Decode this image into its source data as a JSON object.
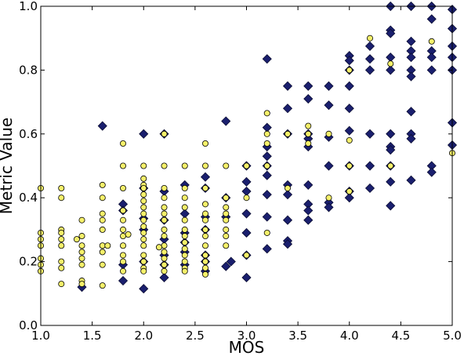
{
  "chart_data": {
    "type": "scatter",
    "title": "",
    "xlabel": "MOS",
    "ylabel": "Metric Value",
    "xlim": [
      1.0,
      5.0
    ],
    "ylim": [
      0.0,
      1.0
    ],
    "x_ticks": [
      "1.0",
      "1.5",
      "2.0",
      "2.5",
      "3.0",
      "3.5",
      "4.0",
      "4.5",
      "5.0"
    ],
    "y_ticks": [
      "0.0",
      "0.2",
      "0.4",
      "0.6",
      "0.8",
      "1.0"
    ],
    "grid": false,
    "legend": "none",
    "series": [
      {
        "marker": "diamond",
        "color": "#1a1f6e",
        "points": [
          [
            1.4,
            0.12
          ],
          [
            1.6,
            0.625
          ],
          [
            1.8,
            0.38
          ],
          [
            1.8,
            0.36
          ],
          [
            1.8,
            0.19
          ],
          [
            1.8,
            0.14
          ],
          [
            2.0,
            0.6
          ],
          [
            2.0,
            0.43
          ],
          [
            2.0,
            0.335
          ],
          [
            2.0,
            0.3
          ],
          [
            2.0,
            0.2
          ],
          [
            2.0,
            0.115
          ],
          [
            2.2,
            0.6
          ],
          [
            2.2,
            0.42
          ],
          [
            2.2,
            0.33
          ],
          [
            2.2,
            0.27
          ],
          [
            2.2,
            0.22
          ],
          [
            2.2,
            0.19
          ],
          [
            2.2,
            0.15
          ],
          [
            2.4,
            0.44
          ],
          [
            2.4,
            0.35
          ],
          [
            2.4,
            0.29
          ],
          [
            2.4,
            0.26
          ],
          [
            2.4,
            0.23
          ],
          [
            2.4,
            0.19
          ],
          [
            2.6,
            0.465
          ],
          [
            2.6,
            0.43
          ],
          [
            2.6,
            0.34
          ],
          [
            2.6,
            0.3
          ],
          [
            2.6,
            0.22
          ],
          [
            2.6,
            0.2
          ],
          [
            2.6,
            0.17
          ],
          [
            2.8,
            0.64
          ],
          [
            2.8,
            0.4
          ],
          [
            2.8,
            0.34
          ],
          [
            2.8,
            0.185
          ],
          [
            2.85,
            0.2
          ],
          [
            3.0,
            0.5
          ],
          [
            3.0,
            0.45
          ],
          [
            3.0,
            0.42
          ],
          [
            3.0,
            0.35
          ],
          [
            3.0,
            0.29
          ],
          [
            3.0,
            0.22
          ],
          [
            3.0,
            0.15
          ],
          [
            3.2,
            0.835
          ],
          [
            3.2,
            0.62
          ],
          [
            3.2,
            0.56
          ],
          [
            3.2,
            0.53
          ],
          [
            3.2,
            0.5
          ],
          [
            3.2,
            0.47
          ],
          [
            3.2,
            0.41
          ],
          [
            3.2,
            0.34
          ],
          [
            3.2,
            0.24
          ],
          [
            3.4,
            0.75
          ],
          [
            3.4,
            0.68
          ],
          [
            3.4,
            0.6
          ],
          [
            3.4,
            0.44
          ],
          [
            3.4,
            0.41
          ],
          [
            3.4,
            0.33
          ],
          [
            3.4,
            0.265
          ],
          [
            3.4,
            0.255
          ],
          [
            3.6,
            0.75
          ],
          [
            3.6,
            0.71
          ],
          [
            3.6,
            0.6
          ],
          [
            3.6,
            0.585
          ],
          [
            3.6,
            0.56
          ],
          [
            3.6,
            0.44
          ],
          [
            3.6,
            0.38
          ],
          [
            3.6,
            0.36
          ],
          [
            3.6,
            0.33
          ],
          [
            3.8,
            0.75
          ],
          [
            3.8,
            0.69
          ],
          [
            3.8,
            0.59
          ],
          [
            3.8,
            0.5
          ],
          [
            3.8,
            0.385
          ],
          [
            3.8,
            0.37
          ],
          [
            4.0,
            0.845
          ],
          [
            4.0,
            0.83
          ],
          [
            4.0,
            0.8
          ],
          [
            4.0,
            0.75
          ],
          [
            4.0,
            0.68
          ],
          [
            4.0,
            0.61
          ],
          [
            4.0,
            0.5
          ],
          [
            4.0,
            0.42
          ],
          [
            4.0,
            0.4
          ],
          [
            4.2,
            0.875
          ],
          [
            4.2,
            0.835
          ],
          [
            4.2,
            0.8
          ],
          [
            4.2,
            0.6
          ],
          [
            4.2,
            0.5
          ],
          [
            4.2,
            0.43
          ],
          [
            4.4,
            1.0
          ],
          [
            4.4,
            0.925
          ],
          [
            4.4,
            0.915
          ],
          [
            4.4,
            0.84
          ],
          [
            4.4,
            0.8
          ],
          [
            4.4,
            0.6
          ],
          [
            4.4,
            0.56
          ],
          [
            4.4,
            0.55
          ],
          [
            4.4,
            0.5
          ],
          [
            4.4,
            0.45
          ],
          [
            4.4,
            0.375
          ],
          [
            4.6,
            1.0
          ],
          [
            4.6,
            0.89
          ],
          [
            4.6,
            0.86
          ],
          [
            4.6,
            0.84
          ],
          [
            4.6,
            0.8
          ],
          [
            4.6,
            0.78
          ],
          [
            4.6,
            0.67
          ],
          [
            4.6,
            0.6
          ],
          [
            4.6,
            0.585
          ],
          [
            4.6,
            0.455
          ],
          [
            4.8,
            1.0
          ],
          [
            4.8,
            0.96
          ],
          [
            4.8,
            0.86
          ],
          [
            4.8,
            0.84
          ],
          [
            4.8,
            0.8
          ],
          [
            4.8,
            0.5
          ],
          [
            4.8,
            0.48
          ],
          [
            5.0,
            0.99
          ],
          [
            5.0,
            0.93
          ],
          [
            5.0,
            0.875
          ],
          [
            5.0,
            0.84
          ],
          [
            5.0,
            0.8
          ],
          [
            5.0,
            0.635
          ],
          [
            5.0,
            0.565
          ]
        ]
      },
      {
        "marker": "circle",
        "color": "#f5f06a",
        "points": [
          [
            1.0,
            0.43
          ],
          [
            1.0,
            0.29
          ],
          [
            1.0,
            0.27
          ],
          [
            1.0,
            0.25
          ],
          [
            1.0,
            0.21
          ],
          [
            1.0,
            0.19
          ],
          [
            1.0,
            0.17
          ],
          [
            1.2,
            0.43
          ],
          [
            1.2,
            0.4
          ],
          [
            1.2,
            0.3
          ],
          [
            1.2,
            0.29
          ],
          [
            1.2,
            0.27
          ],
          [
            1.2,
            0.25
          ],
          [
            1.2,
            0.2
          ],
          [
            1.2,
            0.18
          ],
          [
            1.2,
            0.13
          ],
          [
            1.35,
            0.27
          ],
          [
            1.4,
            0.33
          ],
          [
            1.4,
            0.28
          ],
          [
            1.4,
            0.25
          ],
          [
            1.4,
            0.23
          ],
          [
            1.4,
            0.21
          ],
          [
            1.4,
            0.19
          ],
          [
            1.4,
            0.14
          ],
          [
            1.4,
            0.13
          ],
          [
            1.6,
            0.44
          ],
          [
            1.6,
            0.4
          ],
          [
            1.6,
            0.35
          ],
          [
            1.6,
            0.33
          ],
          [
            1.6,
            0.3
          ],
          [
            1.6,
            0.25
          ],
          [
            1.6,
            0.23
          ],
          [
            1.6,
            0.19
          ],
          [
            1.6,
            0.125
          ],
          [
            1.65,
            0.25
          ],
          [
            1.8,
            0.57
          ],
          [
            1.8,
            0.5
          ],
          [
            1.8,
            0.43
          ],
          [
            1.8,
            0.36
          ],
          [
            1.8,
            0.33
          ],
          [
            1.8,
            0.3
          ],
          [
            1.8,
            0.28
          ],
          [
            1.8,
            0.25
          ],
          [
            1.8,
            0.22
          ],
          [
            1.8,
            0.2
          ],
          [
            1.8,
            0.17
          ],
          [
            1.85,
            0.285
          ],
          [
            2.0,
            0.5
          ],
          [
            2.0,
            0.46
          ],
          [
            2.0,
            0.44
          ],
          [
            2.0,
            0.43
          ],
          [
            2.0,
            0.41
          ],
          [
            2.0,
            0.39
          ],
          [
            2.0,
            0.37
          ],
          [
            2.0,
            0.35
          ],
          [
            2.0,
            0.33
          ],
          [
            2.0,
            0.31
          ],
          [
            2.0,
            0.29
          ],
          [
            2.0,
            0.27
          ],
          [
            2.0,
            0.25
          ],
          [
            2.0,
            0.22
          ],
          [
            2.0,
            0.2
          ],
          [
            2.0,
            0.18
          ],
          [
            2.0,
            0.17
          ],
          [
            2.2,
            0.6
          ],
          [
            2.2,
            0.5
          ],
          [
            2.2,
            0.43
          ],
          [
            2.2,
            0.4
          ],
          [
            2.2,
            0.37
          ],
          [
            2.2,
            0.35
          ],
          [
            2.2,
            0.33
          ],
          [
            2.2,
            0.3
          ],
          [
            2.2,
            0.28
          ],
          [
            2.2,
            0.25
          ],
          [
            2.2,
            0.23
          ],
          [
            2.2,
            0.21
          ],
          [
            2.2,
            0.19
          ],
          [
            2.2,
            0.17
          ],
          [
            2.15,
            0.245
          ],
          [
            2.4,
            0.5
          ],
          [
            2.4,
            0.43
          ],
          [
            2.4,
            0.4
          ],
          [
            2.4,
            0.37
          ],
          [
            2.4,
            0.33
          ],
          [
            2.4,
            0.3
          ],
          [
            2.4,
            0.28
          ],
          [
            2.4,
            0.26
          ],
          [
            2.4,
            0.24
          ],
          [
            2.4,
            0.22
          ],
          [
            2.4,
            0.2
          ],
          [
            2.4,
            0.18
          ],
          [
            2.4,
            0.17
          ],
          [
            2.6,
            0.57
          ],
          [
            2.6,
            0.5
          ],
          [
            2.6,
            0.43
          ],
          [
            2.6,
            0.38
          ],
          [
            2.6,
            0.35
          ],
          [
            2.6,
            0.33
          ],
          [
            2.6,
            0.3
          ],
          [
            2.6,
            0.28
          ],
          [
            2.6,
            0.25
          ],
          [
            2.6,
            0.22
          ],
          [
            2.6,
            0.2
          ],
          [
            2.6,
            0.18
          ],
          [
            2.6,
            0.16
          ],
          [
            2.8,
            0.5
          ],
          [
            2.8,
            0.4
          ],
          [
            2.8,
            0.37
          ],
          [
            2.8,
            0.35
          ],
          [
            2.8,
            0.33
          ],
          [
            2.8,
            0.3
          ],
          [
            2.8,
            0.28
          ],
          [
            2.8,
            0.25
          ],
          [
            3.0,
            0.5
          ],
          [
            3.0,
            0.4
          ],
          [
            3.0,
            0.22
          ],
          [
            3.2,
            0.665
          ],
          [
            3.2,
            0.6
          ],
          [
            3.2,
            0.57
          ],
          [
            3.2,
            0.5
          ],
          [
            3.2,
            0.29
          ],
          [
            3.4,
            0.6
          ],
          [
            3.4,
            0.43
          ],
          [
            3.6,
            0.625
          ],
          [
            3.6,
            0.6
          ],
          [
            3.6,
            0.57
          ],
          [
            3.8,
            0.6
          ],
          [
            3.8,
            0.4
          ],
          [
            4.0,
            0.8
          ],
          [
            4.0,
            0.58
          ],
          [
            4.0,
            0.5
          ],
          [
            4.0,
            0.42
          ],
          [
            4.2,
            0.9
          ],
          [
            4.4,
            0.82
          ],
          [
            4.4,
            0.5
          ],
          [
            4.8,
            0.89
          ],
          [
            5.0,
            0.54
          ]
        ]
      }
    ]
  }
}
